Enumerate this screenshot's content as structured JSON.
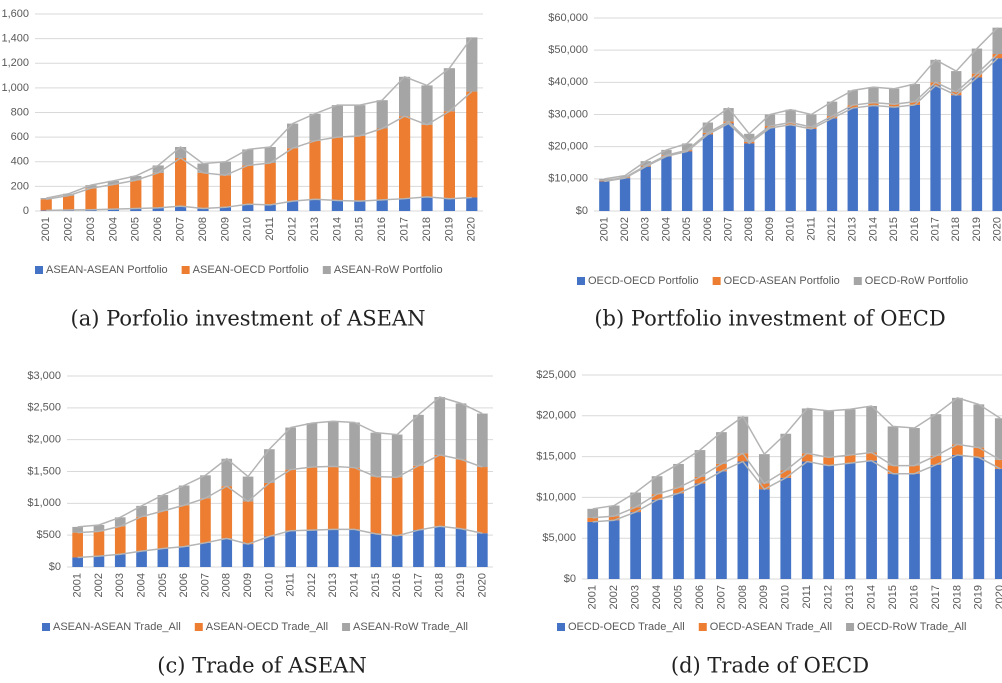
{
  "chart_data": [
    {
      "type": "stacked_bar",
      "caption": "(a) Porfolio investment of ASEAN",
      "categories": [
        "2001",
        "2002",
        "2003",
        "2004",
        "2005",
        "2006",
        "2007",
        "2008",
        "2009",
        "2010",
        "2011",
        "2012",
        "2013",
        "2014",
        "2015",
        "2016",
        "2017",
        "2018",
        "2019",
        "2020"
      ],
      "ylim": [
        0,
        1600
      ],
      "yticks": [
        0,
        200,
        400,
        600,
        800,
        {
          "value": 1000,
          "label": "1,000"
        },
        {
          "value": 1200,
          "label": "1,200"
        },
        {
          "value": 1400,
          "label": "1,400"
        },
        {
          "value": 1600,
          "label": "1,600"
        }
      ],
      "grid": true,
      "series": [
        {
          "name": "ASEAN-ASEAN Portfolio",
          "color": "#4472c4",
          "values": [
            5,
            8,
            10,
            15,
            20,
            25,
            40,
            20,
            30,
            55,
            50,
            80,
            95,
            85,
            80,
            90,
            100,
            115,
            100,
            110
          ]
        },
        {
          "name": "ASEAN-OECD Portfolio",
          "color": "#ed7d31",
          "values": [
            90,
            117,
            175,
            200,
            230,
            285,
            390,
            290,
            260,
            315,
            340,
            430,
            475,
            515,
            530,
            580,
            670,
            585,
            710,
            860
          ]
        },
        {
          "name": "ASEAN-RoW Portfolio",
          "color": "#a5a5a5",
          "values": [
            10,
            15,
            25,
            30,
            35,
            60,
            90,
            75,
            110,
            130,
            130,
            200,
            220,
            260,
            250,
            230,
            320,
            320,
            350,
            440
          ]
        }
      ]
    },
    {
      "type": "stacked_bar",
      "caption": "(b) Portfolio investment of OECD",
      "categories": [
        "2001",
        "2002",
        "2003",
        "2004",
        "2005",
        "2006",
        "2007",
        "2008",
        "2009",
        "2010",
        "2011",
        "2012",
        "2013",
        "2014",
        "2015",
        "2016",
        "2017",
        "2018",
        "2019",
        "2020"
      ],
      "ylim": [
        0,
        60000
      ],
      "yticks": [
        {
          "value": 0,
          "label": "$0"
        },
        {
          "value": 10000,
          "label": "$10,000"
        },
        {
          "value": 20000,
          "label": "$20,000"
        },
        {
          "value": 30000,
          "label": "$30,000"
        },
        {
          "value": 40000,
          "label": "$40,000"
        },
        {
          "value": 50000,
          "label": "$50,000"
        },
        {
          "value": 60000,
          "label": "$60,000"
        }
      ],
      "grid": true,
      "series": [
        {
          "name": "OECD-OECD Portfolio",
          "color": "#4472c4",
          "values": [
            9200,
            10200,
            13800,
            17000,
            18500,
            23800,
            27200,
            21000,
            25800,
            26800,
            25500,
            28800,
            32000,
            32800,
            32300,
            33000,
            39000,
            36000,
            41500,
            47500
          ]
        },
        {
          "name": "OECD-ASEAN Portfolio",
          "color": "#ed7d31",
          "values": [
            200,
            250,
            300,
            350,
            400,
            500,
            600,
            500,
            600,
            700,
            600,
            700,
            900,
            900,
            900,
            1000,
            1000,
            1000,
            1200,
            1300
          ]
        },
        {
          "name": "OECD-RoW Portfolio",
          "color": "#a5a5a5",
          "values": [
            600,
            550,
            1400,
            1650,
            2100,
            3200,
            4200,
            2500,
            3600,
            4000,
            3900,
            4500,
            4600,
            4800,
            4800,
            5500,
            7000,
            6500,
            7800,
            8200
          ]
        }
      ]
    },
    {
      "type": "stacked_bar",
      "caption": "(c) Trade of ASEAN",
      "categories": [
        "2001",
        "2002",
        "2003",
        "2004",
        "2005",
        "2006",
        "2007",
        "2008",
        "2009",
        "2010",
        "2011",
        "2012",
        "2013",
        "2014",
        "2015",
        "2016",
        "2017",
        "2018",
        "2019",
        "2020"
      ],
      "ylim": [
        0,
        3000
      ],
      "yticks": [
        {
          "value": 0,
          "label": "$0"
        },
        {
          "value": 500,
          "label": "$500"
        },
        {
          "value": 1000,
          "label": "$1,000"
        },
        {
          "value": 1500,
          "label": "$1,500"
        },
        {
          "value": 2000,
          "label": "$2,000"
        },
        {
          "value": 2500,
          "label": "$2,500"
        },
        {
          "value": 3000,
          "label": "$3,000"
        }
      ],
      "grid": true,
      "series": [
        {
          "name": "ASEAN-ASEAN Trade_All",
          "color": "#4472c4",
          "values": [
            150,
            170,
            200,
            250,
            290,
            320,
            380,
            450,
            360,
            480,
            570,
            580,
            590,
            590,
            520,
            490,
            580,
            640,
            600,
            530
          ]
        },
        {
          "name": "ASEAN-OECD Trade_All",
          "color": "#ed7d31",
          "values": [
            390,
            390,
            440,
            540,
            590,
            650,
            700,
            820,
            670,
            840,
            960,
            990,
            990,
            970,
            900,
            920,
            1010,
            1120,
            1090,
            1040
          ]
        },
        {
          "name": "ASEAN-RoW Trade_All",
          "color": "#a5a5a5",
          "values": [
            90,
            100,
            140,
            170,
            250,
            310,
            360,
            430,
            390,
            530,
            660,
            690,
            710,
            710,
            690,
            670,
            800,
            910,
            880,
            840
          ]
        }
      ]
    },
    {
      "type": "stacked_bar",
      "caption": "(d) Trade of OECD",
      "categories": [
        "2001",
        "2002",
        "2003",
        "2004",
        "2005",
        "2006",
        "2007",
        "2008",
        "2009",
        "2010",
        "2011",
        "2012",
        "2013",
        "2014",
        "2015",
        "2016",
        "2017",
        "2018",
        "2019",
        "2020"
      ],
      "ylim": [
        0,
        25000
      ],
      "yticks": [
        {
          "value": 0,
          "label": "$0"
        },
        {
          "value": 5000,
          "label": "$5,000"
        },
        {
          "value": 10000,
          "label": "$10,000"
        },
        {
          "value": 15000,
          "label": "$15,000"
        },
        {
          "value": 20000,
          "label": "$20,000"
        },
        {
          "value": 25000,
          "label": "$25,000"
        }
      ],
      "grid": true,
      "series": [
        {
          "name": "OECD-OECD Trade_All",
          "color": "#4472c4",
          "values": [
            7000,
            7200,
            8200,
            9700,
            10500,
            11700,
            13200,
            14400,
            11000,
            12400,
            14400,
            13900,
            14200,
            14500,
            12900,
            12900,
            14000,
            15200,
            14900,
            13500
          ]
        },
        {
          "name": "OECD-ASEAN Trade_All",
          "color": "#ed7d31",
          "values": [
            500,
            500,
            600,
            700,
            700,
            800,
            900,
            1000,
            700,
            900,
            1000,
            1000,
            1000,
            1000,
            1000,
            1000,
            1100,
            1300,
            1200,
            1100
          ]
        },
        {
          "name": "OECD-RoW Trade_All",
          "color": "#a5a5a5",
          "values": [
            1100,
            1300,
            1800,
            2200,
            2900,
            3300,
            3900,
            4500,
            3600,
            4500,
            5500,
            5700,
            5600,
            5700,
            4800,
            4600,
            5100,
            5700,
            5300,
            5100
          ]
        }
      ]
    }
  ]
}
